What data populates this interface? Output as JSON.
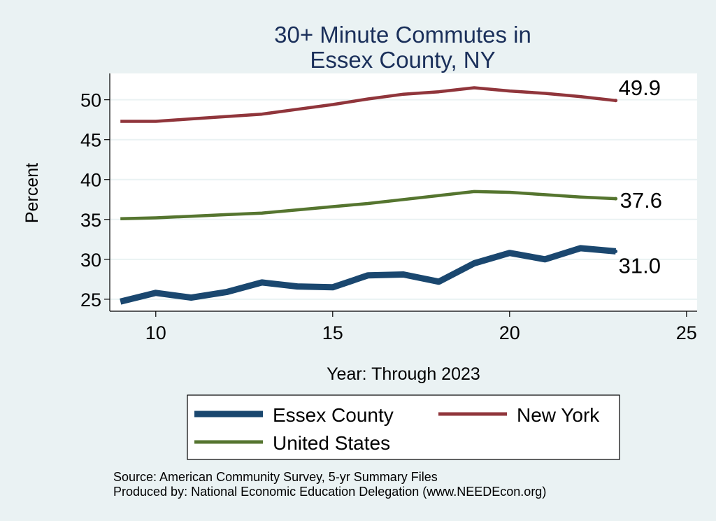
{
  "chart_data": {
    "type": "line",
    "title_lines": [
      "30+ Minute Commutes in",
      "Essex County, NY"
    ],
    "xlabel": "Year: Through 2023",
    "ylabel": "Percent",
    "xlim": [
      8.7,
      25.3
    ],
    "ylim": [
      23.5,
      53.3
    ],
    "x_ticks": [
      10,
      15,
      20,
      25
    ],
    "y_ticks": [
      25,
      30,
      35,
      40,
      45,
      50
    ],
    "grid": true,
    "series": [
      {
        "name": "Essex County",
        "color": "#1a476f",
        "x": [
          9,
          10,
          11,
          12,
          13,
          14,
          15,
          16,
          17,
          18,
          19,
          20,
          21,
          22,
          23
        ],
        "values": [
          24.7,
          25.8,
          25.2,
          25.9,
          27.1,
          26.6,
          26.5,
          28.0,
          28.1,
          27.2,
          29.5,
          30.8,
          30.0,
          31.4,
          31.0
        ],
        "end_label": "31.0"
      },
      {
        "name": "New York",
        "color": "#90353b",
        "x": [
          9,
          10,
          11,
          12,
          13,
          14,
          15,
          16,
          17,
          18,
          19,
          20,
          21,
          22,
          23
        ],
        "values": [
          47.3,
          47.3,
          47.6,
          47.9,
          48.2,
          48.8,
          49.4,
          50.1,
          50.7,
          51.0,
          51.5,
          51.1,
          50.8,
          50.4,
          49.9
        ],
        "end_label": "49.9"
      },
      {
        "name": "United States",
        "color": "#55752f",
        "x": [
          9,
          10,
          11,
          12,
          13,
          14,
          15,
          16,
          17,
          18,
          19,
          20,
          21,
          22,
          23
        ],
        "values": [
          35.1,
          35.2,
          35.4,
          35.6,
          35.8,
          36.2,
          36.6,
          37.0,
          37.5,
          38.0,
          38.5,
          38.4,
          38.1,
          37.8,
          37.6
        ],
        "end_label": "37.6"
      }
    ],
    "legend": {
      "placement": "bottom",
      "entries": [
        "Essex County",
        "New York",
        "United States"
      ]
    },
    "notes": [
      "Source: American Community Survey, 5-yr Summary Files",
      "Produced by: National Economic Education Delegation (www.NEEDEcon.org)"
    ]
  }
}
